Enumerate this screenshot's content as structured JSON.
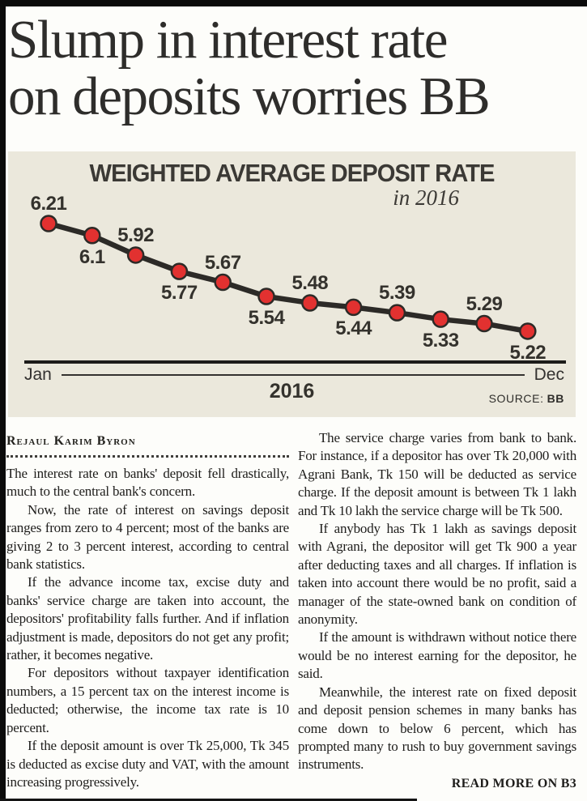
{
  "headline": {
    "line1": "Slump in interest rate",
    "line2": "on deposits worries BB"
  },
  "chart_data": {
    "type": "line",
    "title": "WEIGHTED AVERAGE DEPOSIT RATE",
    "subtitle": "in 2016",
    "x_start": "Jan",
    "x_end": "Dec",
    "x_axis_label": "2016",
    "values": [
      6.21,
      6.1,
      5.92,
      5.77,
      5.67,
      5.54,
      5.48,
      5.44,
      5.39,
      5.33,
      5.29,
      5.22
    ],
    "point_labels": [
      "6.21",
      "6.1",
      "5.92",
      "5.77",
      "5.67",
      "5.54",
      "5.48",
      "5.44",
      "5.39",
      "5.33",
      "5.29",
      "5.22"
    ],
    "source_label": "SOURCE:",
    "source_value": "BB",
    "colors": {
      "background": "#ebe8dc",
      "line": "#2c2a27",
      "point": "#e23130",
      "label_text": "#34322d"
    },
    "legend": "none",
    "grid": "off"
  },
  "article": {
    "byline": "Rejaul Karim Byron",
    "left_column": [
      "The interest rate on banks' deposit fell drastically, much to the central bank's concern.",
      "Now, the rate of interest on savings deposit ranges from zero to 4 percent; most of the banks are giving 2 to 3 percent interest, according to central bank statistics.",
      "If the advance income tax, excise duty and banks' service charge are taken into account, the depositors' profitability falls further. And if inflation adjustment is made, depositors do not get any profit; rather, it becomes negative.",
      "For depositors without taxpayer identification numbers, a 15 percent tax on the interest income is deducted; otherwise, the income tax rate is 10 percent.",
      "If the deposit amount is over Tk 25,000, Tk 345 is deducted as excise duty and VAT, with the amount increasing progressively."
    ],
    "right_column": [
      "The service charge varies from bank to bank. For instance, if a depositor has over Tk 20,000 with Agrani Bank, Tk 150 will be deducted as service charge. If the deposit amount is between Tk 1 lakh and Tk 10 lakh the service charge will be Tk 500.",
      "If anybody has Tk 1 lakh as savings deposit with Agrani, the depositor will get Tk 900 a year after deducting taxes and all charges. If inflation is taken into account there would be no profit, said a manager of the state-owned bank on condition of anonymity.",
      "If the amount is withdrawn without notice there would be no interest earning for the depositor, he said.",
      "Meanwhile, the interest rate on fixed deposit and deposit pension schemes in many banks has come down to below 6 percent, which has prompted many to rush to buy government savings instruments."
    ],
    "read_more": "READ MORE ON B3"
  }
}
